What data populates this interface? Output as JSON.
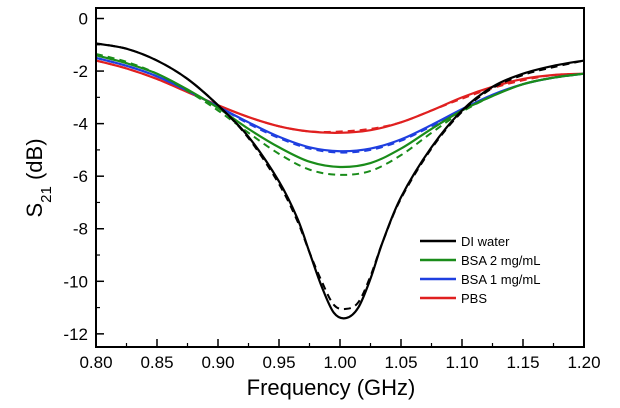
{
  "chart_data": {
    "type": "line",
    "xlabel": "Frequency (GHz)",
    "ylabel_main": "S",
    "ylabel_sub": "21",
    "ylabel_unit": " (dB)",
    "xlim": [
      0.8,
      1.2
    ],
    "ylim": [
      -12.5,
      0.4
    ],
    "x_ticks": [
      0.8,
      0.85,
      0.9,
      0.95,
      1.0,
      1.05,
      1.1,
      1.15,
      1.2
    ],
    "x_tick_labels": [
      "0.80",
      "0.85",
      "0.90",
      "0.95",
      "1.00",
      "1.05",
      "1.10",
      "1.15",
      "1.20"
    ],
    "y_ticks": [
      0,
      -2,
      -4,
      -6,
      -8,
      -10,
      -12
    ],
    "y_tick_labels": [
      "0",
      "-2",
      "-4",
      "-6",
      "-8",
      "-10",
      "-12"
    ],
    "grid": false,
    "legend_position": "bottom-right",
    "series": [
      {
        "name": "DI water",
        "color": "#000000",
        "x": [
          0.8,
          0.825,
          0.85,
          0.875,
          0.9,
          0.925,
          0.95,
          0.965,
          0.975,
          0.985,
          0.995,
          1.005,
          1.015,
          1.025,
          1.035,
          1.05,
          1.075,
          1.1,
          1.125,
          1.15,
          1.175,
          1.2
        ],
        "values": [
          -0.95,
          -1.15,
          -1.6,
          -2.3,
          -3.3,
          -4.5,
          -6.2,
          -7.6,
          -8.9,
          -10.2,
          -11.2,
          -11.4,
          -11.0,
          -9.9,
          -8.5,
          -6.8,
          -4.9,
          -3.5,
          -2.6,
          -2.1,
          -1.8,
          -1.6
        ],
        "dashed_values": [
          -0.95,
          -1.15,
          -1.6,
          -2.3,
          -3.3,
          -4.55,
          -6.3,
          -7.7,
          -8.9,
          -10.0,
          -10.9,
          -11.05,
          -10.8,
          -9.8,
          -8.5,
          -6.85,
          -4.95,
          -3.55,
          -2.65,
          -2.15,
          -1.85,
          -1.6
        ]
      },
      {
        "name": "BSA 2 mg/mL",
        "color": "#1a8c1a",
        "x": [
          0.8,
          0.825,
          0.85,
          0.875,
          0.9,
          0.925,
          0.95,
          0.975,
          1.0,
          1.025,
          1.05,
          1.075,
          1.1,
          1.125,
          1.15,
          1.175,
          1.2
        ],
        "values": [
          -1.4,
          -1.7,
          -2.1,
          -2.7,
          -3.4,
          -4.2,
          -4.9,
          -5.45,
          -5.65,
          -5.5,
          -4.95,
          -4.2,
          -3.5,
          -2.95,
          -2.5,
          -2.25,
          -2.1
        ],
        "dashed_values": [
          -1.35,
          -1.65,
          -2.1,
          -2.75,
          -3.5,
          -4.35,
          -5.15,
          -5.75,
          -5.95,
          -5.8,
          -5.2,
          -4.35,
          -3.55,
          -2.95,
          -2.5,
          -2.25,
          -2.1
        ]
      },
      {
        "name": "BSA 1 mg/mL",
        "color": "#1f3fe0",
        "x": [
          0.8,
          0.825,
          0.85,
          0.875,
          0.9,
          0.925,
          0.95,
          0.975,
          1.0,
          1.025,
          1.05,
          1.075,
          1.1,
          1.125,
          1.15,
          1.175,
          1.2
        ],
        "values": [
          -1.5,
          -1.8,
          -2.2,
          -2.75,
          -3.35,
          -3.95,
          -4.5,
          -4.9,
          -5.05,
          -4.95,
          -4.6,
          -4.05,
          -3.45,
          -2.9,
          -2.5,
          -2.25,
          -2.1
        ],
        "dashed_values": [
          -1.5,
          -1.8,
          -2.2,
          -2.75,
          -3.35,
          -4.0,
          -4.55,
          -4.95,
          -5.1,
          -5.0,
          -4.65,
          -4.1,
          -3.5,
          -2.95,
          -2.5,
          -2.25,
          -2.1
        ]
      },
      {
        "name": "PBS",
        "color": "#e02020",
        "x": [
          0.8,
          0.825,
          0.85,
          0.875,
          0.9,
          0.925,
          0.95,
          0.975,
          1.0,
          1.025,
          1.05,
          1.075,
          1.1,
          1.125,
          1.15,
          1.175,
          1.2
        ],
        "values": [
          -1.6,
          -1.9,
          -2.3,
          -2.8,
          -3.3,
          -3.75,
          -4.1,
          -4.3,
          -4.35,
          -4.25,
          -3.95,
          -3.5,
          -3.0,
          -2.6,
          -2.3,
          -2.15,
          -2.1
        ],
        "dashed_values": [
          -1.6,
          -1.9,
          -2.3,
          -2.8,
          -3.3,
          -3.75,
          -4.1,
          -4.3,
          -4.3,
          -4.2,
          -3.95,
          -3.5,
          -3.05,
          -2.65,
          -2.35,
          -2.15,
          -2.1
        ]
      }
    ]
  }
}
